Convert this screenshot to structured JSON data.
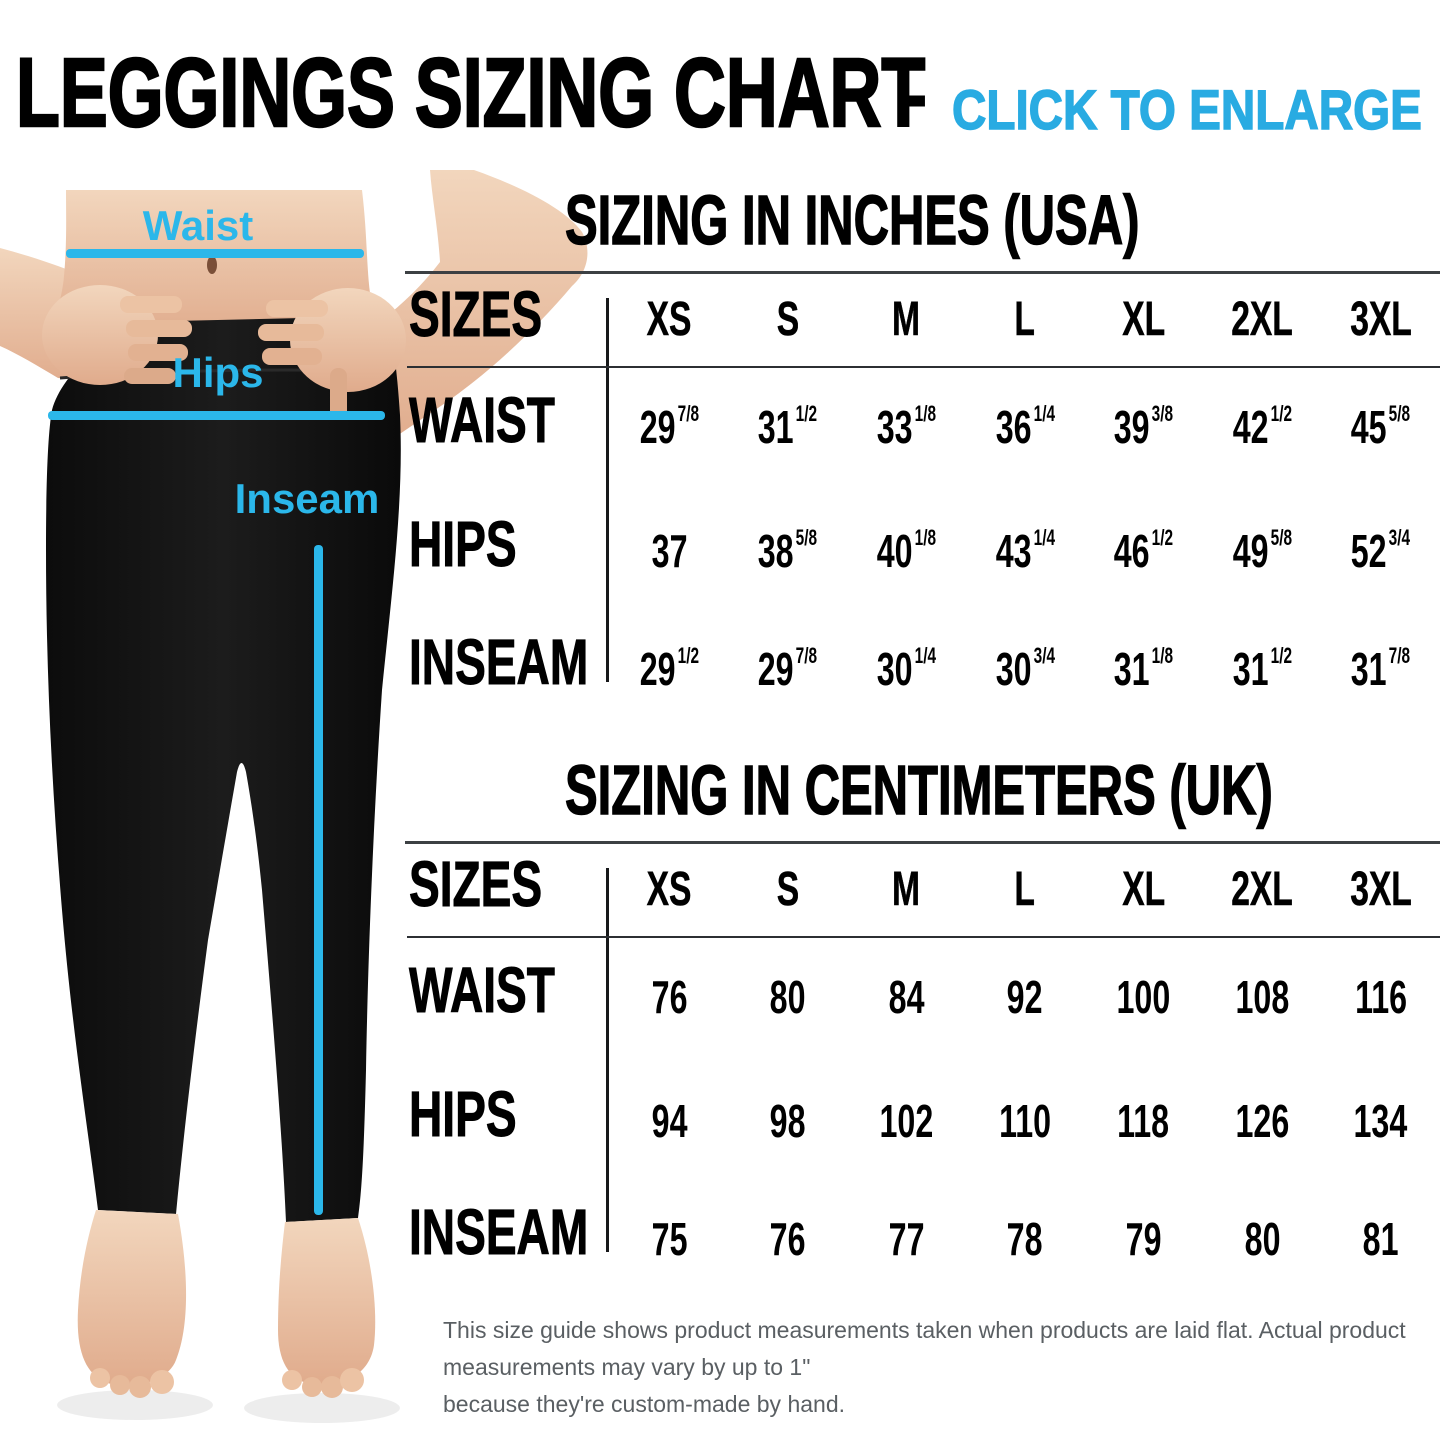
{
  "header": {
    "title": "LEGGINGS SIZING CHART",
    "separator": "-",
    "subtitle": "CLICK TO ENLARGE"
  },
  "figure": {
    "waist_label": "Waist",
    "hips_label": "Hips",
    "inseam_label": "Inseam"
  },
  "tables": [
    {
      "title": "SIZING IN INCHES (USA)",
      "sizes_label": "SIZES",
      "columns": [
        "XS",
        "S",
        "M",
        "L",
        "XL",
        "2XL",
        "3XL"
      ],
      "rows": [
        {
          "label": "WAIST",
          "values": [
            "29 7/8",
            "31 1/2",
            "33 1/8",
            "36 1/4",
            "39 3/8",
            "42 1/2",
            "45 5/8"
          ]
        },
        {
          "label": "HIPS",
          "values": [
            "37",
            "38 5/8",
            "40 1/8",
            "43 1/4",
            "46 1/2",
            "49 5/8",
            "52 3/4"
          ]
        },
        {
          "label": "INSEAM",
          "values": [
            "29 1/2",
            "29 7/8",
            "30 1/4",
            "30 3/4",
            "31 1/8",
            "31 1/2",
            "31 7/8"
          ]
        }
      ]
    },
    {
      "title": "SIZING IN CENTIMETERS (UK)",
      "sizes_label": "SIZES",
      "columns": [
        "XS",
        "S",
        "M",
        "L",
        "XL",
        "2XL",
        "3XL"
      ],
      "rows": [
        {
          "label": "WAIST",
          "values": [
            "76",
            "80",
            "84",
            "92",
            "100",
            "108",
            "116"
          ]
        },
        {
          "label": "HIPS",
          "values": [
            "94",
            "98",
            "102",
            "110",
            "118",
            "126",
            "134"
          ]
        },
        {
          "label": "INSEAM",
          "values": [
            "75",
            "76",
            "77",
            "78",
            "79",
            "80",
            "81"
          ]
        }
      ]
    }
  ],
  "disclaimer": {
    "lines": [
      "This size guide shows product measurements taken when products are laid flat. Actual product measurements may vary by up to 1\"",
      "because they're custom-made by hand."
    ]
  },
  "colors": {
    "accent_blue": "#2bb7ea",
    "subtitle_blue": "#29abe2",
    "text_black": "#000000",
    "rule_gray": "#3c4043",
    "disclaimer_gray": "#5a5f63",
    "skin": "#e8bda0",
    "leggings_black": "#131313"
  }
}
